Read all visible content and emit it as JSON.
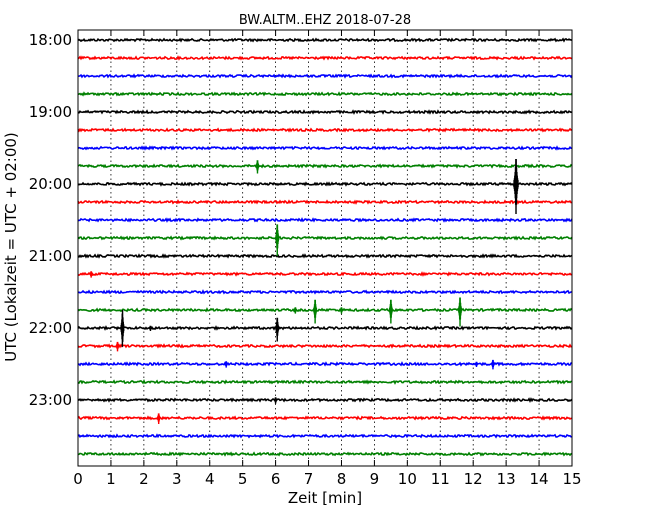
{
  "chart_data": {
    "type": "line",
    "title": "BW.ALTM..EHZ 2018-07-28",
    "xlabel": "Zeit  [min]",
    "ylabel": "UTC (Lokalzeit = UTC + 02:00)",
    "xlim": [
      0,
      15
    ],
    "x_ticks": [
      0,
      1,
      2,
      3,
      4,
      5,
      6,
      7,
      8,
      9,
      10,
      11,
      12,
      13,
      14,
      15
    ],
    "x_tick_labels": [
      "0",
      "1",
      "2",
      "3",
      "4",
      "5",
      "6",
      "7",
      "8",
      "9",
      "10",
      "11",
      "12",
      "13",
      "14",
      "15"
    ],
    "grid": "vertical dotted at each minute",
    "row_start": "18:00",
    "row_interval_min": 15,
    "y_tick_labels": [
      {
        "label": "18:00",
        "row": 0
      },
      {
        "label": "19:00",
        "row": 4
      },
      {
        "label": "20:00",
        "row": 8
      },
      {
        "label": "21:00",
        "row": 12
      },
      {
        "label": "22:00",
        "row": 16
      },
      {
        "label": "23:00",
        "row": 20
      }
    ],
    "row_colors": [
      "#000000",
      "#ff0000",
      "#0000ff",
      "#008000"
    ],
    "trace_count": 24,
    "events": [
      {
        "row": 7,
        "minute": 5.45,
        "amp": 0.25
      },
      {
        "row": 8,
        "minute": 13.3,
        "amp": 1.0
      },
      {
        "row": 11,
        "minute": 6.05,
        "amp": 0.6
      },
      {
        "row": 13,
        "minute": 0.4,
        "amp": 0.12
      },
      {
        "row": 15,
        "minute": 6.6,
        "amp": 0.12
      },
      {
        "row": 15,
        "minute": 7.2,
        "amp": 0.45
      },
      {
        "row": 15,
        "minute": 8.0,
        "amp": 0.12
      },
      {
        "row": 15,
        "minute": 9.5,
        "amp": 0.45
      },
      {
        "row": 15,
        "minute": 11.6,
        "amp": 0.55
      },
      {
        "row": 16,
        "minute": 1.35,
        "amp": 0.7
      },
      {
        "row": 16,
        "minute": 2.2,
        "amp": 0.1
      },
      {
        "row": 16,
        "minute": 6.05,
        "amp": 0.45
      },
      {
        "row": 17,
        "minute": 1.2,
        "amp": 0.18
      },
      {
        "row": 18,
        "minute": 4.5,
        "amp": 0.12
      },
      {
        "row": 18,
        "minute": 12.1,
        "amp": 0.1
      },
      {
        "row": 18,
        "minute": 12.6,
        "amp": 0.18
      },
      {
        "row": 20,
        "minute": 6.0,
        "amp": 0.12
      },
      {
        "row": 21,
        "minute": 2.45,
        "amp": 0.2
      }
    ]
  }
}
